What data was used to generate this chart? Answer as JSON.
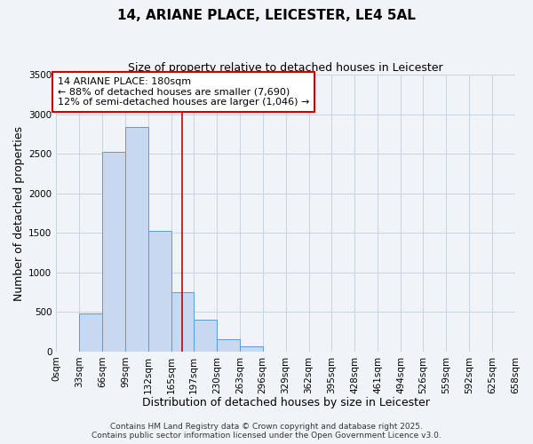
{
  "title": "14, ARIANE PLACE, LEICESTER, LE4 5AL",
  "subtitle": "Size of property relative to detached houses in Leicester",
  "xlabel": "Distribution of detached houses by size in Leicester",
  "ylabel": "Number of detached properties",
  "bin_edges": [
    0,
    33,
    66,
    99,
    132,
    165,
    197,
    230,
    263,
    296,
    329,
    362,
    395,
    428,
    461,
    494,
    526,
    559,
    592,
    625,
    658
  ],
  "bin_labels": [
    "0sqm",
    "33sqm",
    "66sqm",
    "99sqm",
    "132sqm",
    "165sqm",
    "197sqm",
    "230sqm",
    "263sqm",
    "296sqm",
    "329sqm",
    "362sqm",
    "395sqm",
    "428sqm",
    "461sqm",
    "494sqm",
    "526sqm",
    "559sqm",
    "592sqm",
    "625sqm",
    "658sqm"
  ],
  "counts": [
    0,
    480,
    2520,
    2840,
    1530,
    750,
    400,
    150,
    70,
    0,
    0,
    0,
    0,
    0,
    0,
    0,
    0,
    0,
    0,
    0
  ],
  "bar_color": "#c8d8f0",
  "bar_edge_color": "#5b9bd5",
  "vline_x": 180,
  "vline_color": "#cc0000",
  "annotation_text": "14 ARIANE PLACE: 180sqm\n← 88% of detached houses are smaller (7,690)\n12% of semi-detached houses are larger (1,046) →",
  "annotation_box_color": "#ffffff",
  "annotation_box_edge_color": "#cc0000",
  "ylim": [
    0,
    3500
  ],
  "yticks": [
    0,
    500,
    1000,
    1500,
    2000,
    2500,
    3000,
    3500
  ],
  "footer1": "Contains HM Land Registry data © Crown copyright and database right 2025.",
  "footer2": "Contains public sector information licensed under the Open Government Licence v3.0.",
  "background_color": "#f0f4f8",
  "grid_color": "#c8d4e0",
  "title_fontsize": 11,
  "subtitle_fontsize": 9,
  "axis_label_fontsize": 9,
  "tick_fontsize": 7.5,
  "annotation_fontsize": 8,
  "footer_fontsize": 6.5
}
